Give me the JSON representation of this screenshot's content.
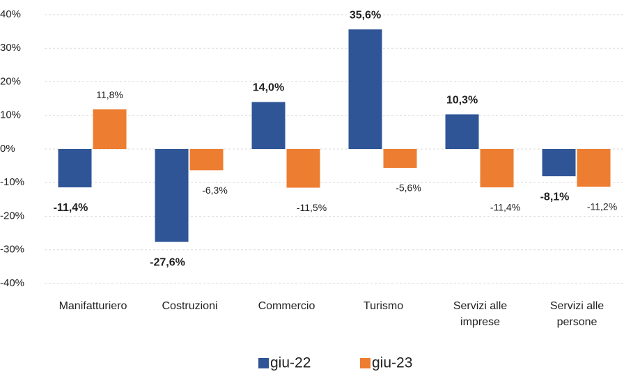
{
  "chart_data": {
    "type": "bar",
    "categories": [
      "Manifatturiero",
      "Costruzioni",
      "Commercio",
      "Turismo",
      "Servizi alle imprese",
      "Servizi alle persone"
    ],
    "series": [
      {
        "name": "giu-22",
        "color": "#2f5597",
        "values": [
          -11.4,
          -27.6,
          14.0,
          35.6,
          10.3,
          -8.1
        ],
        "value_labels": [
          "-11,4%",
          "-27,6%",
          "14,0%",
          "35,6%",
          "10,3%",
          "-8,1%"
        ]
      },
      {
        "name": "giu-23",
        "color": "#ed7d31",
        "values": [
          11.8,
          -6.3,
          -11.5,
          -5.6,
          -11.4,
          -11.2
        ],
        "value_labels": [
          "11,8%",
          "-6,3%",
          "-11,5%",
          "-5,6%",
          "-11,4%",
          "-11,2%"
        ]
      }
    ],
    "ylim": [
      -40,
      40
    ],
    "yticks": [
      {
        "value": -40,
        "label": "-40%"
      },
      {
        "value": -30,
        "label": "-30%"
      },
      {
        "value": -20,
        "label": "-20%"
      },
      {
        "value": -10,
        "label": "-10%"
      },
      {
        "value": 0,
        "label": "0%"
      },
      {
        "value": 10,
        "label": "10%"
      },
      {
        "value": 20,
        "label": "20%"
      },
      {
        "value": 30,
        "label": "30%"
      },
      {
        "value": 40,
        "label": "40%"
      }
    ],
    "grid": true,
    "legend": "bottom"
  }
}
